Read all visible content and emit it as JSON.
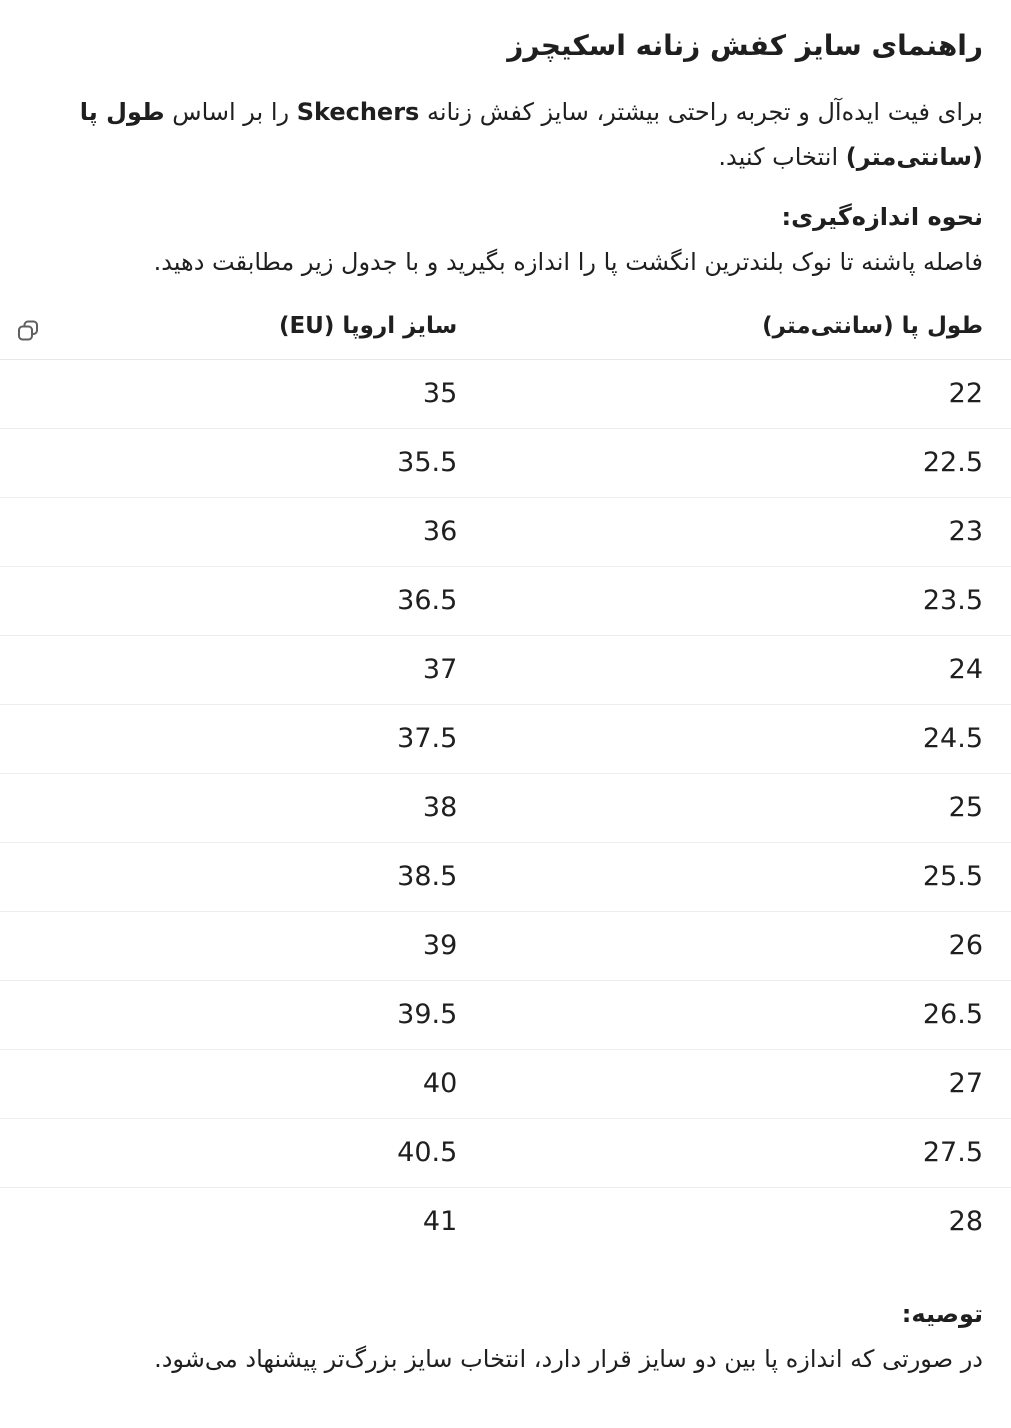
{
  "header": {
    "title": "راهنمای سایز کفش زنانه اسکیچرز"
  },
  "intro": {
    "text_before_brand": "برای فیت ایده‌آل و تجربه راحتی بیشتر، سایز کفش زنانه",
    "brand": "Skechers",
    "text_after_brand": "را بر اساس",
    "emphasis": "طول پا (سانتی‌متر)",
    "text_end": "انتخاب کنید."
  },
  "measurement": {
    "heading": "نحوه اندازه‌گیری:",
    "text": "فاصله پاشنه تا نوک بلندترین انگشت پا را اندازه بگیرید و با جدول زیر مطابقت دهید."
  },
  "table": {
    "copy_icon": "copy-icon",
    "columns": [
      "طول پا (سانتی‌متر)",
      "سایز اروپا (EU)"
    ],
    "rows": [
      [
        "22",
        "35"
      ],
      [
        "22.5",
        "35.5"
      ],
      [
        "23",
        "36"
      ],
      [
        "23.5",
        "36.5"
      ],
      [
        "24",
        "37"
      ],
      [
        "24.5",
        "37.5"
      ],
      [
        "25",
        "38"
      ],
      [
        "25.5",
        "38.5"
      ],
      [
        "26",
        "39"
      ],
      [
        "26.5",
        "39.5"
      ],
      [
        "27",
        "40"
      ],
      [
        "27.5",
        "40.5"
      ],
      [
        "28",
        "41"
      ]
    ]
  },
  "recommendation": {
    "heading": "توصیه:",
    "text": "در صورتی که اندازه پا بین دو سایز قرار دارد، انتخاب سایز بزرگ‌تر پیشنهاد می‌شود."
  },
  "colors": {
    "text": "#1f1f1f",
    "header_divider": "#e7e7e7",
    "row_divider": "#ededed",
    "icon": "#5f5f5f"
  }
}
